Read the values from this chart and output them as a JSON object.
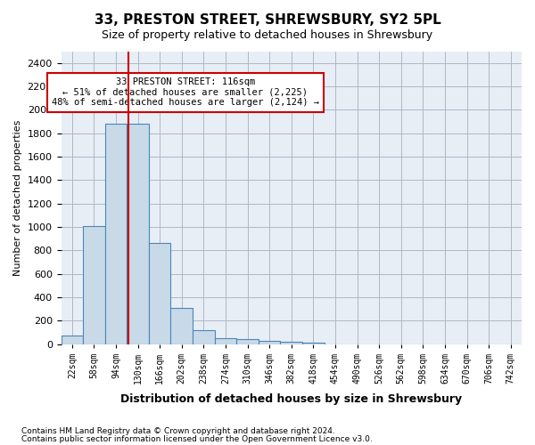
{
  "title1": "33, PRESTON STREET, SHREWSBURY, SY2 5PL",
  "title2": "Size of property relative to detached houses in Shrewsbury",
  "xlabel": "Distribution of detached houses by size in Shrewsbury",
  "ylabel": "Number of detached properties",
  "footnote1": "Contains HM Land Registry data © Crown copyright and database right 2024.",
  "footnote2": "Contains public sector information licensed under the Open Government Licence v3.0.",
  "annotation_line1": "33 PRESTON STREET: 116sqm",
  "annotation_line2": "← 51% of detached houses are smaller (2,225)",
  "annotation_line3": "48% of semi-detached houses are larger (2,124) →",
  "bar_color": "#c8d9e8",
  "bar_edge_color": "#4a86b8",
  "line_color": "#cc0000",
  "annotation_box_edge": "#cc0000",
  "ax_bg_color": "#e8eef5",
  "bin_labels": [
    "22sqm",
    "58sqm",
    "94sqm",
    "130sqm",
    "166sqm",
    "202sqm",
    "238sqm",
    "274sqm",
    "310sqm",
    "346sqm",
    "382sqm",
    "418sqm",
    "454sqm",
    "490sqm",
    "526sqm",
    "562sqm",
    "598sqm",
    "634sqm",
    "670sqm",
    "706sqm",
    "742sqm"
  ],
  "bar_values": [
    75,
    1010,
    1880,
    1880,
    860,
    310,
    115,
    50,
    45,
    30,
    20,
    10,
    0,
    0,
    0,
    0,
    0,
    0,
    0,
    0,
    0
  ],
  "red_line_x": 2.55,
  "ylim": [
    0,
    2500
  ],
  "yticks": [
    0,
    200,
    400,
    600,
    800,
    1000,
    1200,
    1400,
    1600,
    1800,
    2000,
    2200,
    2400
  ],
  "background_color": "#ffffff",
  "grid_color": "#b0b8c8"
}
